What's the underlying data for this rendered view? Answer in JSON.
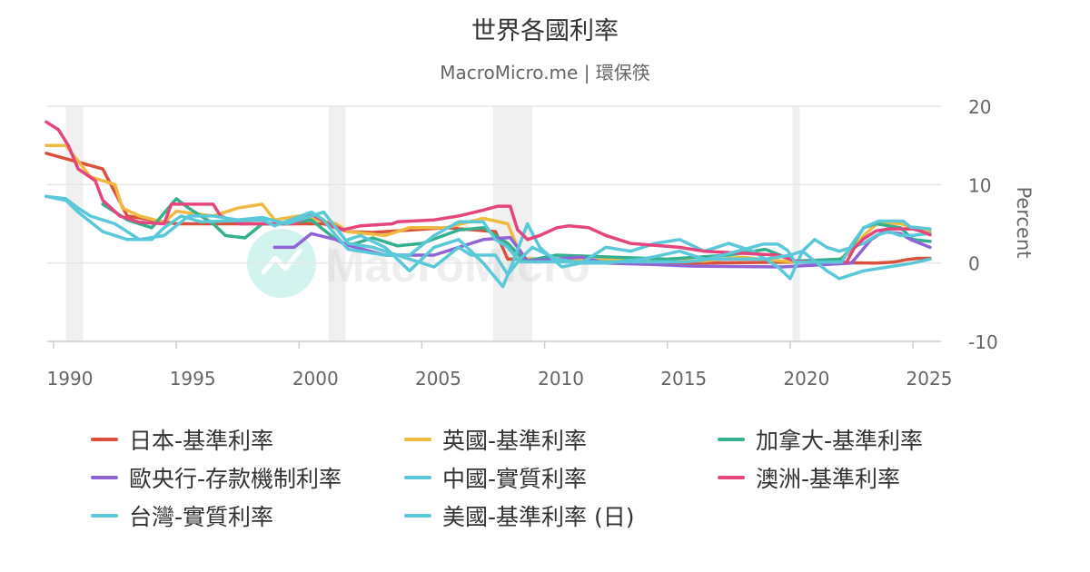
{
  "chart_data": {
    "type": "line",
    "title": "世界各國利率",
    "subtitle": "MacroMicro.me | 環保筷",
    "ylabel": "Percent",
    "xlim": [
      1989.7,
      2025.9
    ],
    "ylim": [
      -10,
      20
    ],
    "y_ticks": [
      "20",
      "10",
      "0",
      "-10"
    ],
    "x_ticks": [
      "1990",
      "1995",
      "2000",
      "2005",
      "2010",
      "2015",
      "2020",
      "2025"
    ],
    "watermark": "MacroMicro",
    "recessions": [
      [
        1990.5,
        1991.2
      ],
      [
        2001.2,
        2001.9
      ],
      [
        2007.9,
        2009.5
      ],
      [
        2020.1,
        2020.4
      ]
    ],
    "grid": true,
    "legend_position": "bottom",
    "series": [
      {
        "name": "日本-基準利率",
        "color": "#d9513c",
        "points": [
          [
            1989.7,
            14.0
          ],
          [
            1992.0,
            12.0
          ],
          [
            1993.0,
            6.0
          ],
          [
            1995.0,
            5.0
          ],
          [
            1997.0,
            5.0
          ],
          [
            1998.0,
            5.0
          ],
          [
            2001.0,
            5.0
          ],
          [
            2002.0,
            4.0
          ],
          [
            2003.0,
            3.9
          ],
          [
            2006.0,
            4.5
          ],
          [
            2008.0,
            4.0
          ],
          [
            2008.5,
            0.5
          ],
          [
            2010.0,
            0.5
          ],
          [
            2016.0,
            0.0
          ],
          [
            2020.0,
            0.1
          ],
          [
            2023.5,
            0.0
          ],
          [
            2024.2,
            0.1
          ],
          [
            2024.7,
            0.4
          ],
          [
            2025.2,
            0.6
          ],
          [
            2025.7,
            0.6
          ]
        ]
      },
      {
        "name": "英國-基準利率",
        "color": "#f0b940",
        "points": [
          [
            1989.7,
            15.0
          ],
          [
            1990.5,
            15.0
          ],
          [
            1991.0,
            13.0
          ],
          [
            1991.5,
            11.0
          ],
          [
            1992.5,
            10.0
          ],
          [
            1992.8,
            7.0
          ],
          [
            1993.5,
            6.0
          ],
          [
            1994.5,
            5.2
          ],
          [
            1995.0,
            6.6
          ],
          [
            1996.5,
            6.0
          ],
          [
            1997.5,
            7.0
          ],
          [
            1998.5,
            7.5
          ],
          [
            1999.0,
            5.5
          ],
          [
            2000.0,
            6.0
          ],
          [
            2001.5,
            5.0
          ],
          [
            2002.0,
            4.0
          ],
          [
            2003.5,
            3.5
          ],
          [
            2004.5,
            4.5
          ],
          [
            2006.0,
            4.5
          ],
          [
            2007.5,
            5.7
          ],
          [
            2008.5,
            5.0
          ],
          [
            2008.9,
            2.0
          ],
          [
            2009.2,
            0.5
          ],
          [
            2016.5,
            0.25
          ],
          [
            2018.0,
            0.75
          ],
          [
            2020.2,
            0.1
          ],
          [
            2021.9,
            0.25
          ],
          [
            2022.5,
            1.5
          ],
          [
            2023.0,
            3.5
          ],
          [
            2023.6,
            5.2
          ],
          [
            2024.5,
            5.0
          ],
          [
            2025.0,
            4.5
          ],
          [
            2025.7,
            4.0
          ]
        ]
      },
      {
        "name": "加拿大-基準利率",
        "color": "#35b08e",
        "points": [
          [
            1992.0,
            7.5
          ],
          [
            1993.0,
            5.5
          ],
          [
            1994.0,
            4.5
          ],
          [
            1995.0,
            8.2
          ],
          [
            1995.5,
            7.0
          ],
          [
            1996.5,
            5.0
          ],
          [
            1997.0,
            3.5
          ],
          [
            1997.8,
            3.2
          ],
          [
            1998.5,
            5.0
          ],
          [
            1999.5,
            5.0
          ],
          [
            2000.5,
            5.5
          ],
          [
            2001.5,
            3.0
          ],
          [
            2002.0,
            2.2
          ],
          [
            2003.0,
            3.2
          ],
          [
            2004.0,
            2.2
          ],
          [
            2005.0,
            2.5
          ],
          [
            2006.5,
            4.2
          ],
          [
            2007.5,
            4.5
          ],
          [
            2008.5,
            2.5
          ],
          [
            2009.2,
            0.25
          ],
          [
            2010.5,
            1.0
          ],
          [
            2015.0,
            0.5
          ],
          [
            2017.5,
            1.0
          ],
          [
            2019.0,
            1.75
          ],
          [
            2020.2,
            0.25
          ],
          [
            2022.1,
            0.5
          ],
          [
            2022.6,
            2.5
          ],
          [
            2023.0,
            4.5
          ],
          [
            2023.5,
            5.0
          ],
          [
            2024.5,
            4.5
          ],
          [
            2025.0,
            3.0
          ],
          [
            2025.7,
            2.75
          ]
        ]
      },
      {
        "name": "歐央行-存款機制利率",
        "color": "#9164d6",
        "points": [
          [
            1999.0,
            2.0
          ],
          [
            1999.8,
            2.0
          ],
          [
            2000.5,
            3.75
          ],
          [
            2001.5,
            3.0
          ],
          [
            2002.0,
            2.25
          ],
          [
            2003.5,
            1.0
          ],
          [
            2005.5,
            1.0
          ],
          [
            2006.5,
            2.0
          ],
          [
            2007.5,
            3.0
          ],
          [
            2008.6,
            3.25
          ],
          [
            2008.9,
            2.0
          ],
          [
            2009.3,
            0.25
          ],
          [
            2011.5,
            0.75
          ],
          [
            2012.5,
            0.0
          ],
          [
            2014.5,
            -0.2
          ],
          [
            2016.0,
            -0.4
          ],
          [
            2019.7,
            -0.5
          ],
          [
            2022.5,
            0.0
          ],
          [
            2022.9,
            1.5
          ],
          [
            2023.3,
            3.0
          ],
          [
            2023.8,
            4.0
          ],
          [
            2024.5,
            3.75
          ],
          [
            2024.9,
            3.0
          ],
          [
            2025.3,
            2.5
          ],
          [
            2025.7,
            2.0
          ]
        ]
      },
      {
        "name": "中國-實質利率",
        "color": "#5ac8d8",
        "points": [
          [
            2002.0,
            3.0
          ],
          [
            2002.5,
            3.5
          ],
          [
            2003.5,
            2.0
          ],
          [
            2004.5,
            -1.0
          ],
          [
            2005.5,
            2.0
          ],
          [
            2006.5,
            3.0
          ],
          [
            2007.5,
            0.0
          ],
          [
            2008.3,
            -3.0
          ],
          [
            2008.7,
            0.0
          ],
          [
            2009.3,
            5.0
          ],
          [
            2009.8,
            2.0
          ],
          [
            2010.7,
            -0.5
          ],
          [
            2011.5,
            0.0
          ],
          [
            2012.5,
            2.0
          ],
          [
            2013.5,
            1.5
          ],
          [
            2014.5,
            2.5
          ],
          [
            2015.5,
            3.0
          ],
          [
            2016.5,
            1.5
          ],
          [
            2017.5,
            2.5
          ],
          [
            2018.5,
            1.5
          ],
          [
            2019.5,
            -0.5
          ],
          [
            2020.0,
            -2.0
          ],
          [
            2020.5,
            1.5
          ],
          [
            2021.0,
            3.0
          ],
          [
            2021.5,
            2.0
          ],
          [
            2022.0,
            1.5
          ],
          [
            2022.5,
            2.0
          ],
          [
            2023.0,
            2.5
          ],
          [
            2023.5,
            3.5
          ],
          [
            2024.0,
            4.0
          ],
          [
            2024.5,
            3.5
          ],
          [
            2025.0,
            3.5
          ],
          [
            2025.7,
            3.8
          ]
        ]
      },
      {
        "name": "澳洲-基準利率",
        "color": "#e5447d",
        "points": [
          [
            1989.7,
            18.0
          ],
          [
            1990.2,
            17.0
          ],
          [
            1990.6,
            15.0
          ],
          [
            1991.0,
            12.0
          ],
          [
            1991.7,
            10.5
          ],
          [
            1992.0,
            8.0
          ],
          [
            1992.7,
            6.0
          ],
          [
            1993.5,
            5.2
          ],
          [
            1994.5,
            5.0
          ],
          [
            1994.8,
            7.5
          ],
          [
            1996.5,
            7.5
          ],
          [
            1996.8,
            6.0
          ],
          [
            1997.6,
            5.0
          ],
          [
            1998.5,
            5.0
          ],
          [
            1999.8,
            5.0
          ],
          [
            2000.5,
            6.2
          ],
          [
            2001.2,
            5.0
          ],
          [
            2001.8,
            4.25
          ],
          [
            2002.5,
            4.75
          ],
          [
            2003.8,
            5.0
          ],
          [
            2004.0,
            5.25
          ],
          [
            2005.5,
            5.5
          ],
          [
            2006.5,
            6.0
          ],
          [
            2007.5,
            6.75
          ],
          [
            2008.1,
            7.25
          ],
          [
            2008.6,
            7.25
          ],
          [
            2008.9,
            4.25
          ],
          [
            2009.3,
            3.0
          ],
          [
            2009.8,
            3.5
          ],
          [
            2010.5,
            4.5
          ],
          [
            2011.0,
            4.75
          ],
          [
            2011.8,
            4.5
          ],
          [
            2012.5,
            3.5
          ],
          [
            2013.5,
            2.5
          ],
          [
            2015.5,
            2.0
          ],
          [
            2016.5,
            1.5
          ],
          [
            2019.5,
            1.0
          ],
          [
            2020.2,
            0.25
          ],
          [
            2021.0,
            0.1
          ],
          [
            2022.3,
            0.1
          ],
          [
            2022.6,
            1.85
          ],
          [
            2023.0,
            3.1
          ],
          [
            2023.5,
            4.1
          ],
          [
            2024.0,
            4.35
          ],
          [
            2025.0,
            4.35
          ],
          [
            2025.3,
            4.1
          ],
          [
            2025.7,
            3.6
          ]
        ]
      },
      {
        "name": "台灣-實質利率",
        "color": "#5ac8d8",
        "points": [
          [
            1989.7,
            8.5
          ],
          [
            1990.5,
            8.2
          ],
          [
            1991.0,
            7.0
          ],
          [
            1991.5,
            6.0
          ],
          [
            1992.5,
            5.0
          ],
          [
            1993.5,
            3.0
          ],
          [
            1994.5,
            3.5
          ],
          [
            1995.5,
            6.0
          ],
          [
            1996.5,
            6.0
          ],
          [
            1997.5,
            5.5
          ],
          [
            1998.5,
            5.8
          ],
          [
            1999.5,
            5.0
          ],
          [
            2000.5,
            6.0
          ],
          [
            2001.0,
            6.5
          ],
          [
            2001.5,
            4.5
          ],
          [
            2002.0,
            2.5
          ],
          [
            2003.0,
            2.0
          ],
          [
            2004.0,
            1.0
          ],
          [
            2005.0,
            0.0
          ],
          [
            2005.5,
            -0.5
          ],
          [
            2006.5,
            2.0
          ],
          [
            2007.0,
            1.0
          ],
          [
            2008.0,
            1.0
          ],
          [
            2008.5,
            -1.5
          ],
          [
            2009.0,
            0.5
          ],
          [
            2009.5,
            2.0
          ],
          [
            2010.5,
            0.5
          ],
          [
            2011.5,
            0.0
          ],
          [
            2012.5,
            0.0
          ],
          [
            2014.0,
            0.5
          ],
          [
            2015.5,
            1.5
          ],
          [
            2016.5,
            0.5
          ],
          [
            2018.0,
            0.5
          ],
          [
            2019.0,
            0.5
          ],
          [
            2020.0,
            1.0
          ],
          [
            2020.5,
            1.5
          ],
          [
            2021.5,
            -1.0
          ],
          [
            2022.0,
            -2.0
          ],
          [
            2023.0,
            -1.0
          ],
          [
            2024.0,
            -0.5
          ],
          [
            2025.0,
            0.0
          ],
          [
            2025.7,
            0.5
          ]
        ]
      },
      {
        "name": "美國-基準利率 (日)",
        "color": "#5ac8d8",
        "points": [
          [
            1989.7,
            8.5
          ],
          [
            1990.5,
            8.0
          ],
          [
            1991.0,
            6.5
          ],
          [
            1992.0,
            4.0
          ],
          [
            1993.0,
            3.0
          ],
          [
            1994.0,
            3.0
          ],
          [
            1994.5,
            4.5
          ],
          [
            1995.2,
            6.0
          ],
          [
            1996.0,
            5.25
          ],
          [
            1998.5,
            5.5
          ],
          [
            1999.0,
            4.75
          ],
          [
            2000.5,
            6.5
          ],
          [
            2001.0,
            5.5
          ],
          [
            2001.5,
            3.5
          ],
          [
            2002.0,
            1.75
          ],
          [
            2003.5,
            1.0
          ],
          [
            2004.5,
            1.0
          ],
          [
            2005.5,
            3.5
          ],
          [
            2006.5,
            5.25
          ],
          [
            2007.5,
            5.25
          ],
          [
            2008.0,
            3.0
          ],
          [
            2008.5,
            2.0
          ],
          [
            2009.0,
            0.15
          ],
          [
            2015.8,
            0.15
          ],
          [
            2016.5,
            0.4
          ],
          [
            2017.5,
            1.2
          ],
          [
            2018.9,
            2.4
          ],
          [
            2019.5,
            2.4
          ],
          [
            2019.9,
            1.6
          ],
          [
            2020.2,
            0.1
          ],
          [
            2022.1,
            0.1
          ],
          [
            2022.5,
            2.3
          ],
          [
            2023.0,
            4.5
          ],
          [
            2023.6,
            5.35
          ],
          [
            2024.6,
            5.35
          ],
          [
            2024.9,
            4.6
          ],
          [
            2025.7,
            4.35
          ]
        ]
      }
    ]
  }
}
